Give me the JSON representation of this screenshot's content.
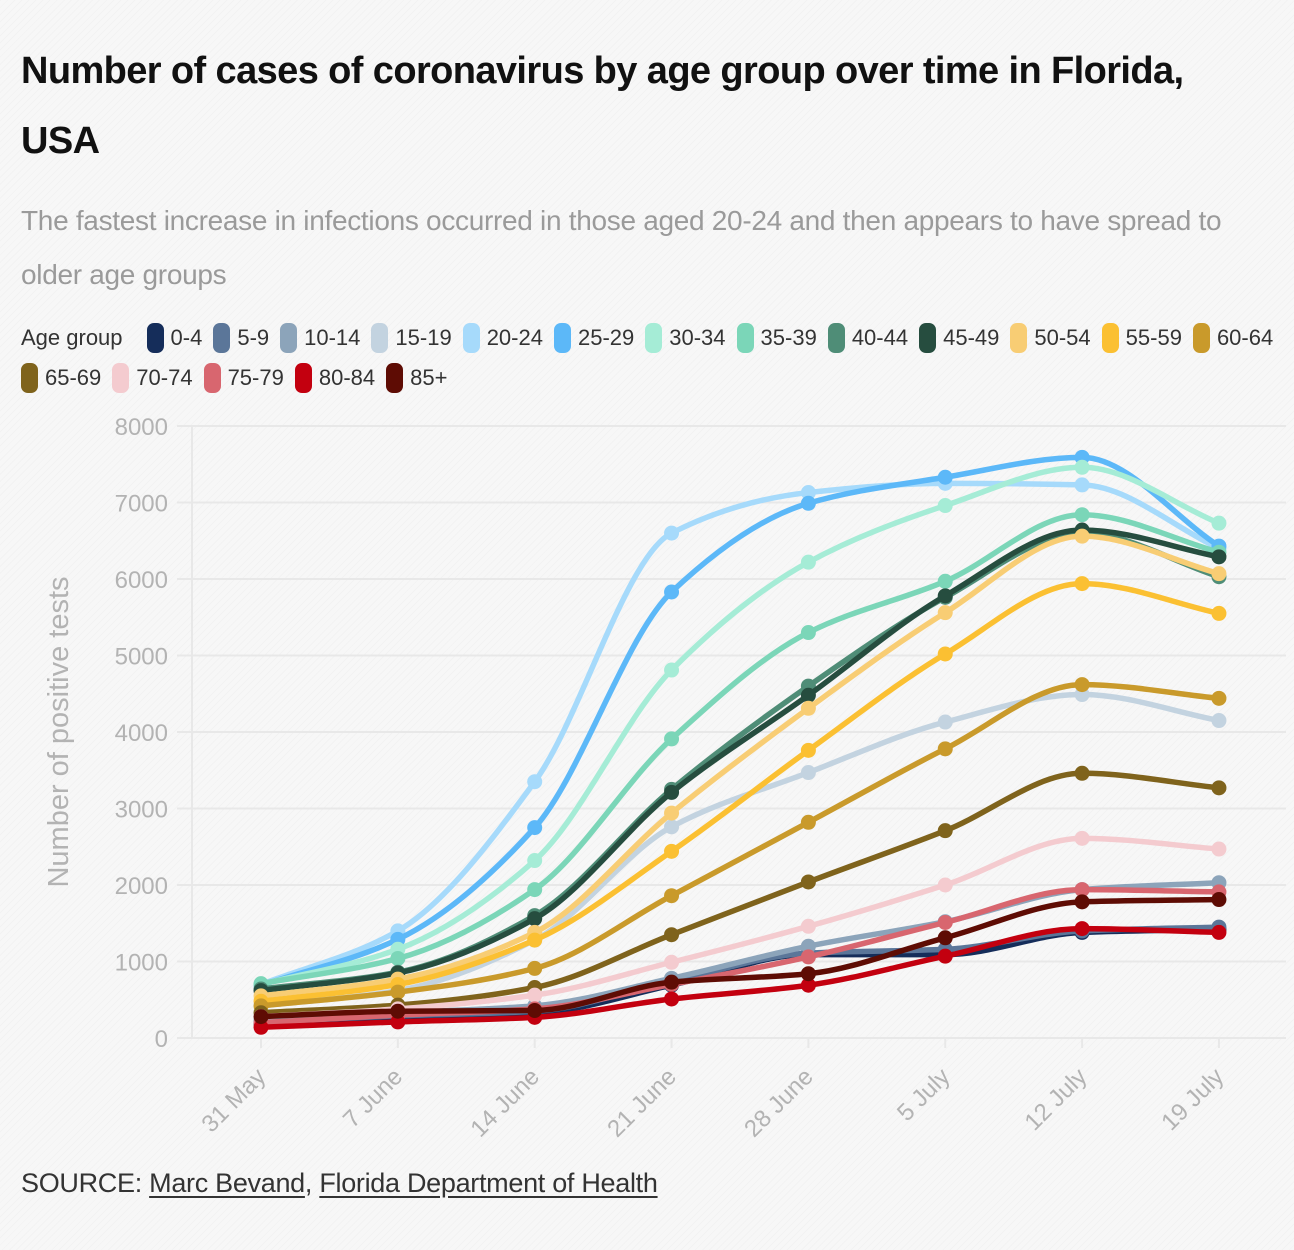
{
  "title": "Number of cases of coronavirus by age group over time in Florida, USA",
  "subtitle": "The fastest increase in infections occurred in those aged 20-24 and then appears to have spread to older age groups",
  "legend": {
    "title": "Age group"
  },
  "source": {
    "prefix": "SOURCE:",
    "links": [
      "Marc Bevand",
      "Florida Department of Health"
    ],
    "separator": ","
  },
  "chart_data": {
    "type": "line",
    "title": "Number of cases of coronavirus by age group over time in Florida, USA",
    "subtitle": "The fastest increase in infections occurred in those aged 20-24 and then appears to have spread to older age groups",
    "xlabel": "",
    "ylabel": "Number of positive tests",
    "x": [
      "31 May",
      "7 June",
      "14 June",
      "21 June",
      "28 June",
      "5 July",
      "12 July",
      "19 July"
    ],
    "ylim": [
      0,
      8000
    ],
    "yticks": [
      0,
      1000,
      2000,
      3000,
      4000,
      5000,
      6000,
      7000,
      8000
    ],
    "grid": true,
    "legend_position": "top",
    "series": [
      {
        "name": "0-4",
        "color": "#152d5a",
        "values": [
          190,
          260,
          320,
          690,
          1090,
          1090,
          1380,
          1420
        ]
      },
      {
        "name": "5-9",
        "color": "#5b7699",
        "values": [
          210,
          290,
          350,
          740,
          1110,
          1160,
          1400,
          1450
        ]
      },
      {
        "name": "10-14",
        "color": "#8ca4ba",
        "values": [
          230,
          330,
          420,
          780,
          1200,
          1520,
          1940,
          2030
        ]
      },
      {
        "name": "15-19",
        "color": "#c3d3e0",
        "values": [
          420,
          620,
          1280,
          2760,
          3470,
          4130,
          4490,
          4150
        ]
      },
      {
        "name": "20-24",
        "color": "#a6dafb",
        "values": [
          700,
          1400,
          3350,
          6600,
          7130,
          7250,
          7230,
          6400
        ]
      },
      {
        "name": "25-29",
        "color": "#5cb8f8",
        "values": [
          690,
          1290,
          2750,
          5830,
          6990,
          7330,
          7590,
          6430
        ]
      },
      {
        "name": "30-34",
        "color": "#a5ecd6",
        "values": [
          700,
          1160,
          2320,
          4810,
          6220,
          6960,
          7460,
          6730
        ]
      },
      {
        "name": "35-39",
        "color": "#7bd6b8",
        "values": [
          710,
          1040,
          1940,
          3910,
          5300,
          5970,
          6840,
          6350
        ]
      },
      {
        "name": "40-44",
        "color": "#4f8d77",
        "values": [
          640,
          860,
          1600,
          3250,
          4600,
          5760,
          6600,
          6030
        ]
      },
      {
        "name": "45-49",
        "color": "#264d3f",
        "values": [
          620,
          850,
          1560,
          3210,
          4480,
          5780,
          6640,
          6290
        ]
      },
      {
        "name": "50-54",
        "color": "#f8cd74",
        "values": [
          550,
          770,
          1380,
          2940,
          4310,
          5560,
          6560,
          6070
        ]
      },
      {
        "name": "55-59",
        "color": "#fbc032",
        "values": [
          480,
          700,
          1280,
          2440,
          3760,
          5020,
          5940,
          5550
        ]
      },
      {
        "name": "60-64",
        "color": "#c99a2b",
        "values": [
          420,
          600,
          910,
          1860,
          2820,
          3780,
          4620,
          4440
        ]
      },
      {
        "name": "65-69",
        "color": "#7f631c",
        "values": [
          330,
          430,
          660,
          1350,
          2040,
          2710,
          3460,
          3270
        ]
      },
      {
        "name": "70-74",
        "color": "#f4cbcf",
        "values": [
          280,
          380,
          560,
          990,
          1460,
          2000,
          2610,
          2470
        ]
      },
      {
        "name": "75-79",
        "color": "#d8666f",
        "values": [
          200,
          300,
          380,
          700,
          1060,
          1510,
          1940,
          1910
        ]
      },
      {
        "name": "80-84",
        "color": "#c3000f",
        "values": [
          140,
          210,
          270,
          510,
          690,
          1070,
          1430,
          1380
        ]
      },
      {
        "name": "85+",
        "color": "#5e0c04",
        "values": [
          280,
          350,
          360,
          730,
          840,
          1310,
          1780,
          1810
        ]
      }
    ]
  }
}
